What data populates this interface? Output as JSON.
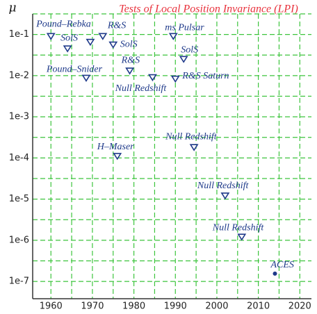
{
  "chart_data": {
    "type": "scatter",
    "title": "Tests of Local Position Invariance (LPI)",
    "y_label": "μ",
    "x": [
      1960,
      1964,
      1969.5,
      1972.5,
      1975,
      1979,
      1984.5,
      1968.5,
      1989.5,
      1992,
      1990,
      1976,
      1994.5,
      2002,
      2006,
      2014
    ],
    "values": [
      0.09,
      0.045,
      0.065,
      0.09,
      0.056,
      0.013,
      0.009,
      0.0087,
      0.09,
      0.025,
      0.0083,
      0.00011,
      0.00018,
      1.2e-05,
      1.2e-06,
      1.55e-07
    ],
    "labels": [
      "Pound–Rebka",
      "SolS",
      null,
      "R&S",
      "SolS",
      "R&S",
      "Null Redshift",
      "Pound–Snider",
      "ms Pulsar",
      "SolS",
      "R&S Saturn",
      "H–Maser",
      "Null Redshift",
      "Null Redshift",
      "Null Redshift",
      "ACES"
    ],
    "markers": [
      "triangle",
      "triangle",
      "triangle",
      "triangle",
      "triangle",
      "triangle",
      "triangle",
      "triangle",
      "triangle",
      "triangle",
      "triangle",
      "triangle",
      "triangle",
      "triangle",
      "triangle",
      "circle"
    ],
    "color": "#1f3a8a",
    "xlim": [
      1955.6,
      2022.8
    ],
    "xticks": [
      1960,
      1970,
      1980,
      1990,
      2000,
      2010,
      2020
    ],
    "ylim": [
      3.8e-08,
      0.316
    ],
    "yticks": [
      {
        "value": 0.1,
        "label": "1e-1"
      },
      {
        "value": 0.01,
        "label": "1e-2"
      },
      {
        "value": 0.001,
        "label": "1e-3"
      },
      {
        "value": 0.0001,
        "label": "1e-4"
      },
      {
        "value": 1e-05,
        "label": "1e-5"
      },
      {
        "value": 1e-06,
        "label": "1e-6"
      },
      {
        "value": 1e-07,
        "label": "1e-7"
      }
    ],
    "y_log": true,
    "grid": true
  }
}
